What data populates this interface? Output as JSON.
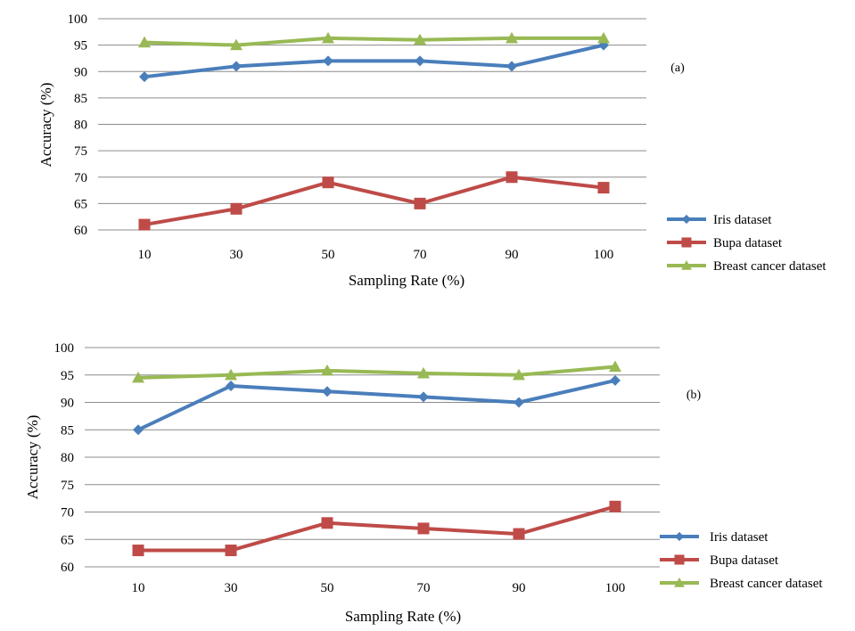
{
  "chart_data": [
    {
      "type": "line",
      "panel_label": "(a)",
      "categories": [
        "10",
        "30",
        "50",
        "70",
        "90",
        "100"
      ],
      "xlabel": "Sampling Rate (%)",
      "ylabel": "Accuracy (%)",
      "ylim": [
        60,
        100
      ],
      "yticks": [
        "60",
        "65",
        "70",
        "75",
        "80",
        "85",
        "90",
        "95",
        "100"
      ],
      "grid": true,
      "legend": "bottom-right",
      "series": [
        {
          "name": "Iris dataset",
          "color": "#4a7ebb",
          "marker": "diamond",
          "values": [
            89,
            91,
            92,
            92,
            91,
            95
          ]
        },
        {
          "name": "Bupa dataset",
          "color": "#be4b48",
          "marker": "square",
          "values": [
            61,
            64,
            69,
            65,
            70,
            68
          ]
        },
        {
          "name": "Breast cancer dataset",
          "color": "#98b954",
          "marker": "triangle",
          "values": [
            95.5,
            95,
            96.3,
            96,
            96.3,
            96.3
          ]
        }
      ]
    },
    {
      "type": "line",
      "panel_label": "(b)",
      "categories": [
        "10",
        "30",
        "50",
        "70",
        "90",
        "100"
      ],
      "xlabel": "Sampling Rate (%)",
      "ylabel": "Accuracy (%)",
      "ylim": [
        60,
        100
      ],
      "yticks": [
        "60",
        "65",
        "70",
        "75",
        "80",
        "85",
        "90",
        "95",
        "100"
      ],
      "grid": true,
      "legend": "bottom-right",
      "series": [
        {
          "name": "Iris dataset",
          "color": "#4a7ebb",
          "marker": "diamond",
          "values": [
            85,
            93,
            92,
            91,
            90,
            94
          ]
        },
        {
          "name": "Bupa dataset",
          "color": "#be4b48",
          "marker": "square",
          "values": [
            63,
            63,
            68,
            67,
            66,
            71
          ]
        },
        {
          "name": "Breast cancer dataset",
          "color": "#98b954",
          "marker": "triangle",
          "values": [
            94.5,
            95,
            95.8,
            95.3,
            95,
            96.5
          ]
        }
      ]
    }
  ]
}
